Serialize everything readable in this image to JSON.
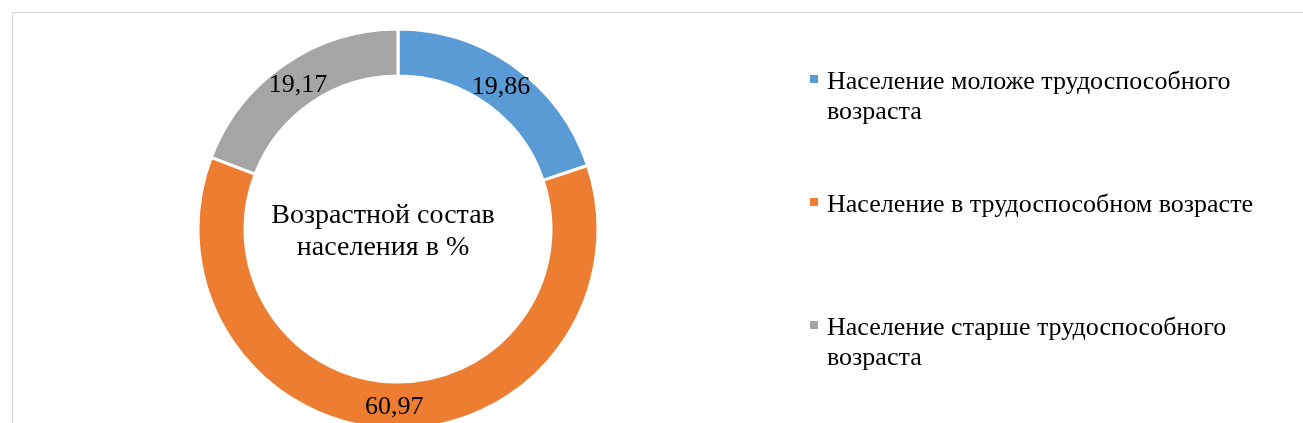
{
  "chart_data": {
    "type": "donut",
    "title": "Возрастной состав населения в %",
    "categories": [
      "Население моложе трудоспособного возраста",
      "Население в трудоспособном возрасте",
      "Население старше трудоспособного возраста"
    ],
    "values": [
      19.86,
      60.97,
      19.17
    ],
    "value_labels": [
      "19,86",
      "60,97",
      "19,17"
    ],
    "colors": [
      "#5b9bd5",
      "#ed7d31",
      "#a5a5a5"
    ],
    "legend": "right"
  }
}
